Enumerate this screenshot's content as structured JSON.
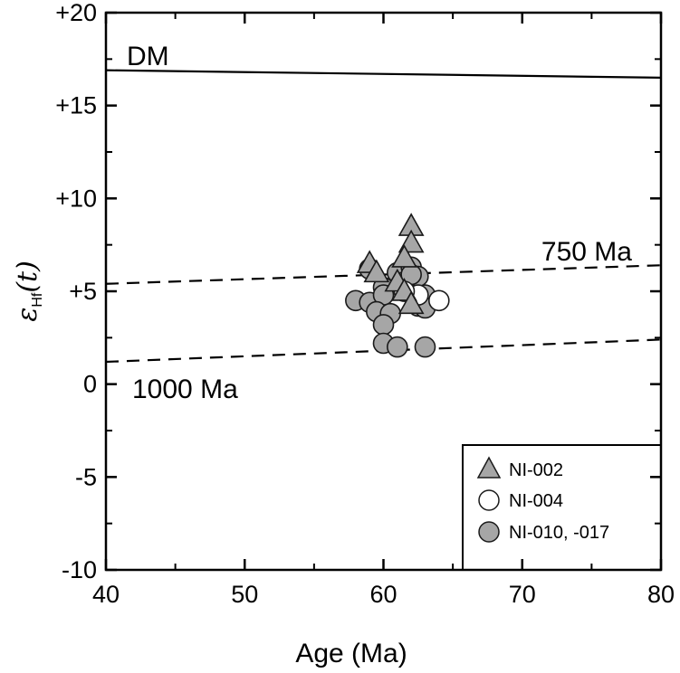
{
  "chart_data": {
    "type": "scatter",
    "xlabel": "Age (Ma)",
    "ylabel_main": "ε",
    "ylabel_sub": "Hf",
    "ylabel_paren": "(t)",
    "xlim": [
      40,
      80
    ],
    "ylim": [
      -10,
      20
    ],
    "xticks": [
      40,
      50,
      60,
      70,
      80
    ],
    "xtick_labels": [
      "40",
      "50",
      "60",
      "70",
      "80"
    ],
    "yticks": [
      20,
      15,
      10,
      5,
      0,
      -5,
      -10
    ],
    "ytick_labels": [
      "+20",
      "+15",
      "+10",
      "+5",
      "0",
      "-5",
      "-10"
    ],
    "grid": false,
    "legend_position": "bottom-right",
    "reference_lines": [
      {
        "label": "DM",
        "style": "solid",
        "x": [
          40,
          80
        ],
        "y": [
          16.9,
          16.5
        ]
      },
      {
        "label": "750 Ma",
        "style": "dashed",
        "x": [
          40,
          80
        ],
        "y": [
          5.4,
          6.4
        ]
      },
      {
        "label": "1000 Ma",
        "style": "dashed",
        "x": [
          40,
          80
        ],
        "y": [
          1.2,
          2.4
        ]
      }
    ],
    "series": [
      {
        "name": "NI-002",
        "marker": "triangle",
        "fill": "#a6a6a6",
        "x": [
          62.0,
          62.0,
          61.5,
          59.0,
          59.5,
          61.0,
          61.5,
          62.0
        ],
        "y": [
          8.5,
          7.6,
          6.8,
          6.5,
          6.0,
          5.5,
          5.0,
          4.3
        ]
      },
      {
        "name": "NI-004",
        "marker": "circle",
        "fill": "#ffffff",
        "x": [
          64.0,
          62.5,
          61.5
        ],
        "y": [
          4.5,
          4.8,
          5.0
        ]
      },
      {
        "name": "NI-010, -017",
        "marker": "circle",
        "fill": "#a6a6a6",
        "x": [
          59.0,
          61.0,
          62.0,
          62.5,
          60.0,
          61.5,
          63.0,
          58.0,
          59.0,
          60.0,
          62.5,
          63.0,
          59.5,
          60.5,
          60.0,
          60.0,
          61.0,
          63.0,
          61.5,
          62.0
        ],
        "y": [
          6.2,
          6.0,
          6.3,
          5.8,
          5.2,
          5.0,
          4.8,
          4.5,
          4.4,
          4.8,
          4.2,
          4.1,
          3.9,
          3.8,
          3.2,
          2.2,
          2.0,
          2.0,
          5.5,
          5.9
        ]
      }
    ]
  },
  "colors": {
    "marker_gray": "#a6a6a6",
    "marker_stroke": "#1a1a1a",
    "axis": "#000000"
  }
}
